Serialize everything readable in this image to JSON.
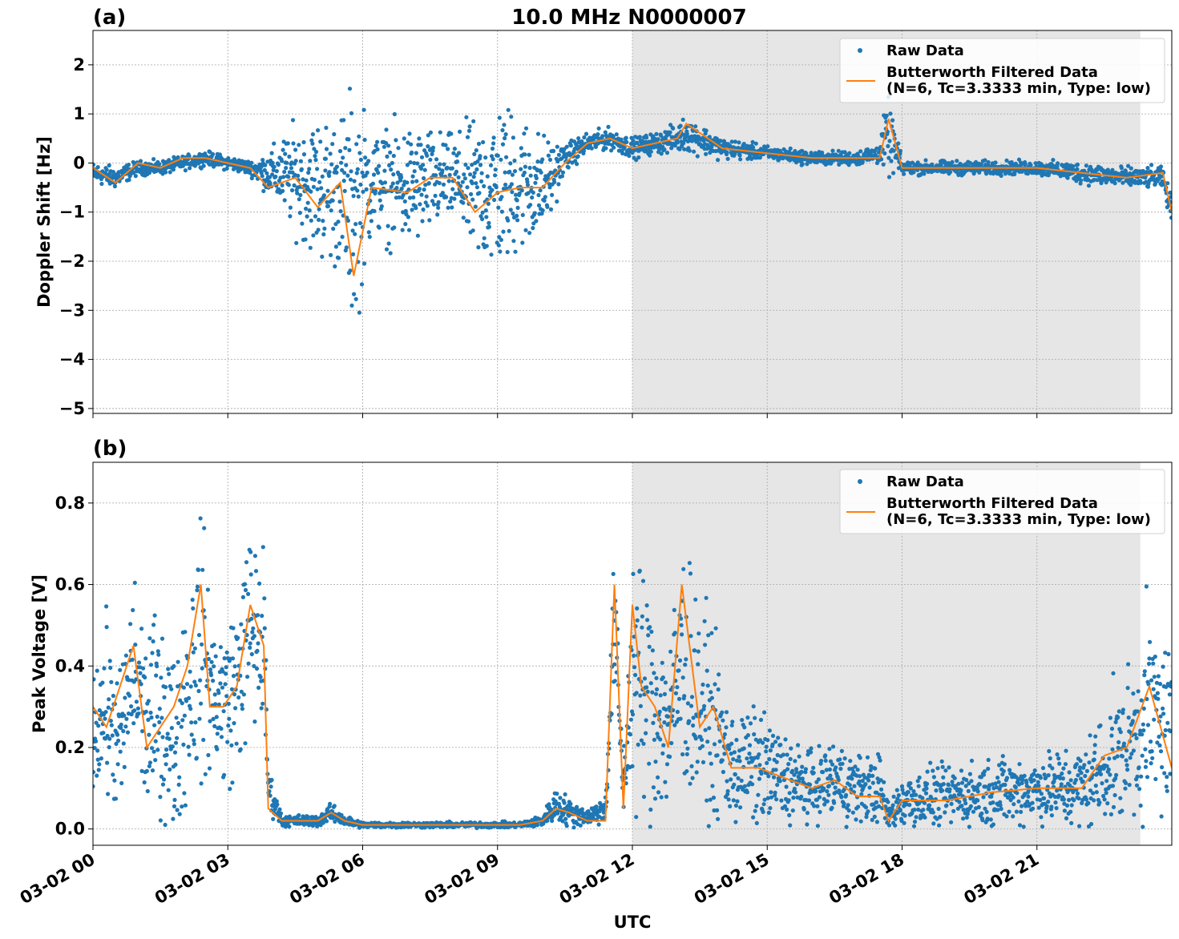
{
  "title": "10.0 MHz N0000007",
  "xlabel": "UTC",
  "colors": {
    "raw": "#1f77b4",
    "filtered": "#ff7f0e",
    "shade": "#e6e6e6"
  },
  "x_ticks": [
    "03-02 00",
    "03-02 03",
    "03-02 06",
    "03-02 09",
    "03-02 12",
    "03-02 15",
    "03-02 18",
    "03-02 21"
  ],
  "shaded_interval_hours": [
    12,
    23.3
  ],
  "chart_data": [
    {
      "type": "scatter",
      "panel_label": "(a)",
      "ylabel": "Doppler Shift [Hz]",
      "xlim_hours": [
        0,
        24
      ],
      "ylim": [
        -5.1,
        2.7
      ],
      "y_ticks": [
        "2",
        "1",
        "0",
        "−1",
        "−2",
        "−3",
        "−4",
        "−5"
      ],
      "y_tick_values": [
        2,
        1,
        0,
        -1,
        -2,
        -3,
        -4,
        -5
      ],
      "grid": true,
      "legend_position": "upper right",
      "legend": {
        "raw": "Raw Data",
        "filtered_line1": "Butterworth Filtered Data",
        "filtered_line2": "(N=6, Tc=3.3333 min, Type: low)"
      },
      "series": [
        {
          "name": "Raw Data",
          "kind": "scatter",
          "x_hours": [
            0,
            0.5,
            1,
            1.5,
            2,
            2.5,
            3,
            3.5,
            3.9,
            4.5,
            5,
            5.5,
            5.8,
            6.2,
            7,
            7.5,
            8,
            8.5,
            9,
            9.5,
            10,
            10.5,
            11,
            11.5,
            12,
            12.5,
            13,
            13.2,
            14,
            15,
            16,
            17,
            17.5,
            17.7,
            18,
            19,
            20,
            21,
            22,
            23,
            23.8,
            24
          ],
          "y_center": [
            -0.2,
            -0.3,
            -0.1,
            -0.1,
            0,
            0.1,
            0,
            -0.1,
            -0.2,
            -0.3,
            -0.5,
            -0.6,
            -0.9,
            -0.4,
            -0.5,
            -0.4,
            -0.3,
            -0.6,
            -0.5,
            -0.4,
            -0.5,
            0.1,
            0.4,
            0.5,
            0.3,
            0.4,
            0.5,
            0.6,
            0.3,
            0.2,
            0.1,
            0.1,
            0.2,
            0.6,
            -0.1,
            -0.1,
            -0.1,
            -0.1,
            -0.2,
            -0.3,
            -0.3,
            -1.0
          ],
          "y_spread": [
            0.3,
            0.3,
            0.2,
            0.2,
            0.2,
            0.2,
            0.2,
            0.2,
            0.6,
            1.5,
            2.0,
            2.2,
            3.5,
            1.5,
            1.8,
            1.5,
            1.2,
            2.0,
            2.5,
            2.0,
            1.5,
            0.4,
            0.3,
            0.3,
            0.3,
            0.3,
            0.4,
            0.5,
            0.3,
            0.2,
            0.2,
            0.2,
            0.3,
            1.2,
            0.2,
            0.2,
            0.2,
            0.2,
            0.3,
            0.3,
            0.3,
            0.4
          ]
        },
        {
          "name": "Butterworth Filtered Data (N=6, Tc=3.3333 min, Type: low)",
          "kind": "line",
          "x_hours": [
            0,
            0.5,
            1,
            1.5,
            2,
            2.5,
            3,
            3.5,
            3.9,
            4.5,
            5,
            5.5,
            5.8,
            6.2,
            7,
            7.5,
            8,
            8.5,
            9,
            9.5,
            10,
            10.5,
            11,
            11.5,
            12,
            12.5,
            13,
            13.2,
            14,
            15,
            16,
            17,
            17.5,
            17.7,
            18,
            19,
            20,
            21,
            22,
            23,
            23.8,
            24
          ],
          "y": [
            -0.1,
            -0.4,
            0,
            -0.1,
            0.1,
            0.1,
            0,
            -0.1,
            -0.5,
            -0.3,
            -0.9,
            -0.4,
            -2.3,
            -0.5,
            -0.6,
            -0.3,
            -0.3,
            -1.0,
            -0.6,
            -0.5,
            -0.5,
            0,
            0.4,
            0.5,
            0.3,
            0.4,
            0.5,
            0.8,
            0.3,
            0.2,
            0.1,
            0.1,
            0.1,
            0.9,
            -0.1,
            -0.1,
            -0.1,
            -0.1,
            -0.2,
            -0.3,
            -0.2,
            -1.0
          ]
        }
      ]
    },
    {
      "type": "scatter",
      "panel_label": "(b)",
      "ylabel": "Peak Voltage [V]",
      "xlim_hours": [
        0,
        24
      ],
      "ylim": [
        -0.04,
        0.9
      ],
      "y_ticks": [
        "0.8",
        "0.6",
        "0.4",
        "0.2",
        "0.0"
      ],
      "y_tick_values": [
        0.8,
        0.6,
        0.4,
        0.2,
        0.0
      ],
      "grid": true,
      "legend_position": "upper right",
      "legend": {
        "raw": "Raw Data",
        "filtered_line1": "Butterworth Filtered Data",
        "filtered_line2": "(N=6, Tc=3.3333 min, Type: low)"
      },
      "series": [
        {
          "name": "Raw Data",
          "kind": "scatter",
          "x_hours": [
            0,
            0.3,
            0.6,
            0.9,
            1.2,
            1.5,
            1.8,
            2.1,
            2.4,
            2.6,
            2.9,
            3.2,
            3.5,
            3.8,
            3.9,
            4.2,
            5,
            5.3,
            5.6,
            6,
            7,
            8,
            9,
            9.5,
            10,
            10.3,
            10.6,
            11,
            11.4,
            11.6,
            11.8,
            12,
            12.2,
            12.5,
            12.8,
            13.1,
            13.5,
            13.8,
            14.2,
            14.8,
            15.5,
            16,
            16.5,
            17,
            17.5,
            17.7,
            18,
            19,
            20,
            21,
            22,
            22.5,
            23,
            23.5,
            24
          ],
          "y_center": [
            0.25,
            0.3,
            0.2,
            0.4,
            0.25,
            0.3,
            0.2,
            0.35,
            0.45,
            0.35,
            0.3,
            0.35,
            0.5,
            0.45,
            0.1,
            0.02,
            0.02,
            0.04,
            0.02,
            0.01,
            0.01,
            0.01,
            0.01,
            0.01,
            0.02,
            0.06,
            0.04,
            0.03,
            0.05,
            0.5,
            0.1,
            0.4,
            0.35,
            0.3,
            0.25,
            0.4,
            0.3,
            0.25,
            0.15,
            0.15,
            0.12,
            0.1,
            0.12,
            0.1,
            0.1,
            0.03,
            0.07,
            0.08,
            0.09,
            0.1,
            0.1,
            0.15,
            0.2,
            0.28,
            0.25
          ],
          "y_spread": [
            0.2,
            0.3,
            0.25,
            0.35,
            0.3,
            0.35,
            0.3,
            0.4,
            0.45,
            0.3,
            0.3,
            0.3,
            0.35,
            0.35,
            0.08,
            0.02,
            0.02,
            0.03,
            0.02,
            0.01,
            0.01,
            0.01,
            0.01,
            0.01,
            0.02,
            0.06,
            0.05,
            0.03,
            0.05,
            0.3,
            0.1,
            0.45,
            0.45,
            0.4,
            0.3,
            0.45,
            0.35,
            0.3,
            0.2,
            0.2,
            0.15,
            0.12,
            0.15,
            0.12,
            0.12,
            0.04,
            0.1,
            0.1,
            0.12,
            0.12,
            0.15,
            0.2,
            0.25,
            0.35,
            0.3
          ]
        },
        {
          "name": "Butterworth Filtered Data (N=6, Tc=3.3333 min, Type: low)",
          "kind": "line",
          "x_hours": [
            0,
            0.3,
            0.6,
            0.9,
            1.2,
            1.5,
            1.8,
            2.1,
            2.4,
            2.6,
            2.9,
            3.2,
            3.5,
            3.8,
            3.9,
            4.2,
            5,
            5.3,
            5.6,
            6,
            7,
            8,
            9,
            9.5,
            10,
            10.3,
            10.6,
            11,
            11.4,
            11.6,
            11.8,
            12,
            12.2,
            12.5,
            12.8,
            13.1,
            13.5,
            13.8,
            14.2,
            14.8,
            15.5,
            16,
            16.5,
            17,
            17.5,
            17.7,
            18,
            19,
            20,
            21,
            22,
            22.5,
            23,
            23.5,
            24
          ],
          "y": [
            0.3,
            0.25,
            0.35,
            0.45,
            0.2,
            0.25,
            0.3,
            0.4,
            0.6,
            0.3,
            0.3,
            0.35,
            0.55,
            0.45,
            0.05,
            0.02,
            0.02,
            0.04,
            0.02,
            0.01,
            0.01,
            0.01,
            0.01,
            0.01,
            0.02,
            0.05,
            0.04,
            0.02,
            0.02,
            0.6,
            0.05,
            0.55,
            0.35,
            0.3,
            0.2,
            0.6,
            0.25,
            0.3,
            0.15,
            0.15,
            0.12,
            0.1,
            0.12,
            0.08,
            0.08,
            0.02,
            0.07,
            0.07,
            0.09,
            0.1,
            0.1,
            0.18,
            0.2,
            0.35,
            0.15
          ]
        }
      ]
    }
  ]
}
